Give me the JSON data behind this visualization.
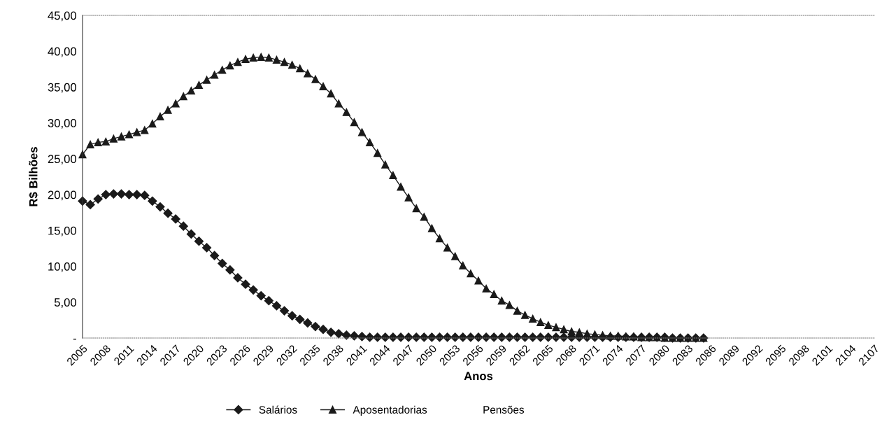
{
  "chart_data": {
    "type": "line",
    "xlabel": "Anos",
    "ylabel": "R$ Bilhões",
    "xlim": [
      2005,
      2107
    ],
    "ylim": [
      0,
      45
    ],
    "xticks": [
      2005,
      2008,
      2011,
      2014,
      2017,
      2020,
      2023,
      2026,
      2029,
      2032,
      2035,
      2038,
      2041,
      2044,
      2047,
      2050,
      2053,
      2056,
      2059,
      2062,
      2065,
      2068,
      2071,
      2074,
      2077,
      2080,
      2083,
      2086,
      2089,
      2092,
      2095,
      2098,
      2101,
      2104,
      2107
    ],
    "yticks": [
      {
        "value": 0,
        "label": "-"
      },
      {
        "value": 5,
        "label": "5,00"
      },
      {
        "value": 10,
        "label": "10,00"
      },
      {
        "value": 15,
        "label": "15,00"
      },
      {
        "value": 20,
        "label": "20,00"
      },
      {
        "value": 25,
        "label": "25,00"
      },
      {
        "value": 30,
        "label": "30,00"
      },
      {
        "value": 35,
        "label": "35,00"
      },
      {
        "value": 40,
        "label": "40,00"
      },
      {
        "value": 45,
        "label": "45,00"
      }
    ],
    "grid": false,
    "legend": "bottom",
    "x": [
      2005,
      2006,
      2007,
      2008,
      2009,
      2010,
      2011,
      2012,
      2013,
      2014,
      2015,
      2016,
      2017,
      2018,
      2019,
      2020,
      2021,
      2022,
      2023,
      2024,
      2025,
      2026,
      2027,
      2028,
      2029,
      2030,
      2031,
      2032,
      2033,
      2034,
      2035,
      2036,
      2037,
      2038,
      2039,
      2040,
      2041,
      2042,
      2043,
      2044,
      2045,
      2046,
      2047,
      2048,
      2049,
      2050,
      2051,
      2052,
      2053,
      2054,
      2055,
      2056,
      2057,
      2058,
      2059,
      2060,
      2061,
      2062,
      2063,
      2064,
      2065,
      2066,
      2067,
      2068,
      2069,
      2070,
      2071,
      2072,
      2073,
      2074,
      2075,
      2076,
      2077,
      2078,
      2079,
      2080,
      2081,
      2082,
      2083,
      2084,
      2085
    ],
    "series": [
      {
        "name": "Salários",
        "color": "#1a1a1a",
        "marker": "diamond",
        "values": [
          19.1,
          18.6,
          19.4,
          20.0,
          20.1,
          20.1,
          20.0,
          20.0,
          19.9,
          19.1,
          18.3,
          17.4,
          16.6,
          15.6,
          14.5,
          13.5,
          12.6,
          11.5,
          10.4,
          9.5,
          8.4,
          7.5,
          6.7,
          5.9,
          5.2,
          4.5,
          3.8,
          3.1,
          2.6,
          2.1,
          1.6,
          1.2,
          0.8,
          0.6,
          0.4,
          0.3,
          0.2,
          0.1,
          0.1,
          0.1,
          0.1,
          0.1,
          0.1,
          0.1,
          0.1,
          0.1,
          0.1,
          0.1,
          0.1,
          0.1,
          0.1,
          0.1,
          0.1,
          0.1,
          0.1,
          0.1,
          0.1,
          0.1,
          0.1,
          0.1,
          0.1,
          0.1,
          0.1,
          0.1,
          0.1,
          0.1,
          0.1,
          0.1,
          0.1,
          0.1,
          0.1,
          0.1,
          0.1,
          0.1,
          0.1,
          0.1,
          0.0,
          0.0,
          0.0,
          0.0,
          0.0
        ]
      },
      {
        "name": "Aposentadorias",
        "color": "#1a1a1a",
        "marker": "triangle",
        "values": [
          25.6,
          27.0,
          27.3,
          27.4,
          27.8,
          28.1,
          28.4,
          28.7,
          29.0,
          29.9,
          30.9,
          31.8,
          32.7,
          33.7,
          34.5,
          35.3,
          36.0,
          36.7,
          37.4,
          38.0,
          38.5,
          38.9,
          39.1,
          39.2,
          39.1,
          38.8,
          38.5,
          38.1,
          37.6,
          36.9,
          36.1,
          35.1,
          34.1,
          32.7,
          31.5,
          30.1,
          28.7,
          27.3,
          25.8,
          24.2,
          22.7,
          21.1,
          19.6,
          18.1,
          16.9,
          15.3,
          13.9,
          12.6,
          11.4,
          10.1,
          9.0,
          8.0,
          6.9,
          6.1,
          5.2,
          4.6,
          3.8,
          3.2,
          2.7,
          2.2,
          1.8,
          1.5,
          1.2,
          0.9,
          0.8,
          0.6,
          0.5,
          0.4,
          0.3,
          0.3,
          0.2,
          0.2,
          0.1,
          0.1,
          0.1,
          0.0,
          0.0,
          0.0,
          0.0,
          0.0,
          0.0
        ]
      },
      {
        "name": "Pensões",
        "marker": "none",
        "values": [
          null,
          null,
          null,
          null,
          null,
          null,
          null,
          null,
          null,
          null,
          null,
          null,
          null,
          null,
          null,
          null,
          null,
          null,
          null,
          null,
          null,
          null,
          null,
          null,
          null,
          null,
          null,
          null,
          null,
          null,
          null,
          null,
          null,
          null,
          null,
          null,
          null,
          null,
          null,
          null,
          null,
          null,
          null,
          null,
          null,
          null,
          null,
          null,
          null,
          null,
          null,
          null,
          null,
          null,
          null,
          null,
          null,
          null,
          null,
          null,
          null,
          null,
          null,
          null,
          null,
          null,
          null,
          null,
          null,
          null,
          null,
          null,
          null,
          null,
          null,
          null,
          null,
          null,
          null,
          null,
          null
        ]
      }
    ]
  }
}
